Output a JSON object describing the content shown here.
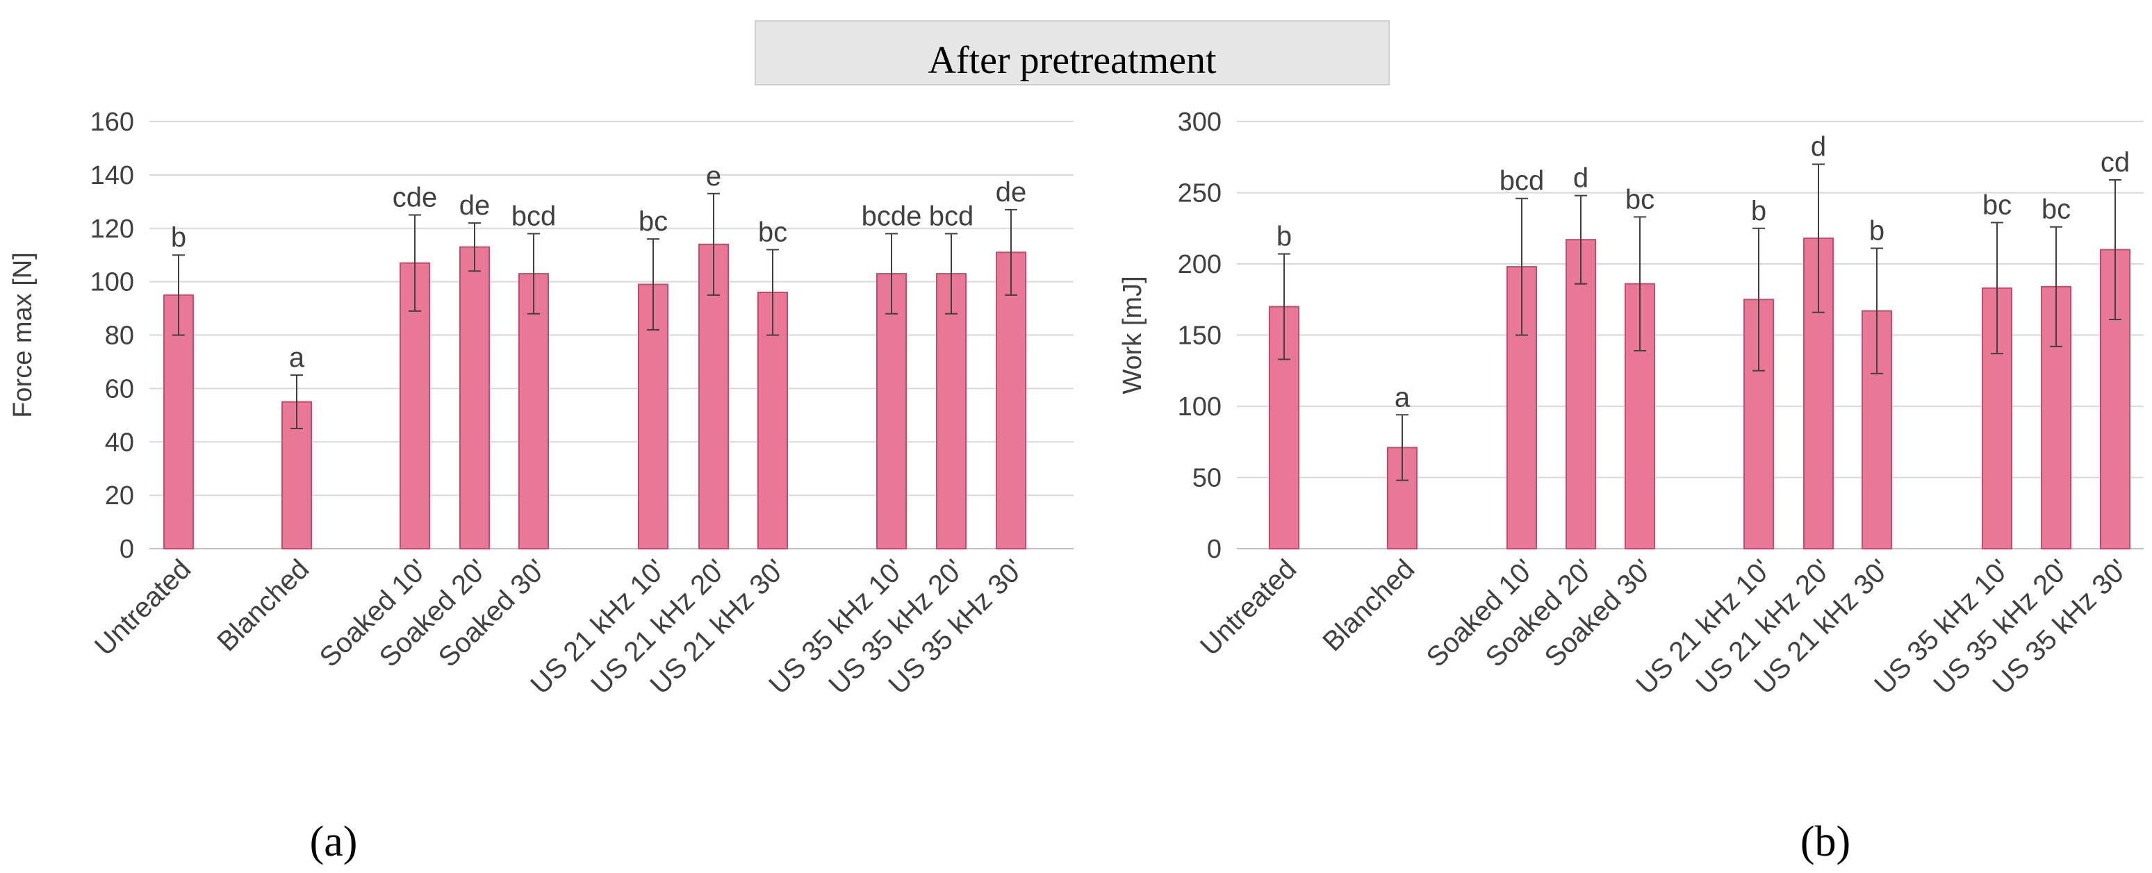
{
  "banner": {
    "title": "After pretreatment"
  },
  "chart_data": [
    {
      "type": "bar",
      "panel": "(a)",
      "title": "",
      "xlabel": "",
      "ylabel": "Force max [N]",
      "ylim": [
        0,
        160
      ],
      "yticks": [
        0,
        20,
        40,
        60,
        80,
        100,
        120,
        140,
        160
      ],
      "grid": true,
      "categories": [
        "Untreated",
        "Blanched",
        "Soaked 10'",
        "Soaked 20'",
        "Soaked 30'",
        "US 21 kHz 10'",
        "US 21 kHz 20'",
        "US 21 kHz 30'",
        "US 35 kHz 10'",
        "US 35 kHz 20'",
        "US 35 kHz 30'"
      ],
      "values": [
        95,
        55,
        107,
        113,
        103,
        99,
        114,
        96,
        103,
        103,
        111
      ],
      "errors": [
        15,
        10,
        18,
        9,
        15,
        17,
        19,
        16,
        15,
        15,
        16
      ],
      "significance": [
        "b",
        "a",
        "cde",
        "de",
        "bcd",
        "bc",
        "e",
        "bc",
        "bcde",
        "bcd",
        "de"
      ]
    },
    {
      "type": "bar",
      "panel": "(b)",
      "title": "",
      "xlabel": "",
      "ylabel": "Work [mJ]",
      "ylim": [
        0,
        300
      ],
      "yticks": [
        0,
        50,
        100,
        150,
        200,
        250,
        300
      ],
      "grid": true,
      "categories": [
        "Untreated",
        "Blanched",
        "Soaked 10'",
        "Soaked 20'",
        "Soaked 30'",
        "US 21 kHz 10'",
        "US 21 kHz 20'",
        "US 21 kHz 30'",
        "US 35 kHz 10'",
        "US 35 kHz 20'",
        "US 35 kHz 30'"
      ],
      "values": [
        170,
        71,
        198,
        217,
        186,
        175,
        218,
        167,
        183,
        184,
        210
      ],
      "errors": [
        37,
        23,
        48,
        31,
        47,
        50,
        52,
        44,
        46,
        42,
        49
      ],
      "significance": [
        "b",
        "a",
        "bcd",
        "d",
        "bc",
        "b",
        "d",
        "b",
        "bc",
        "bc",
        "cd"
      ]
    }
  ]
}
